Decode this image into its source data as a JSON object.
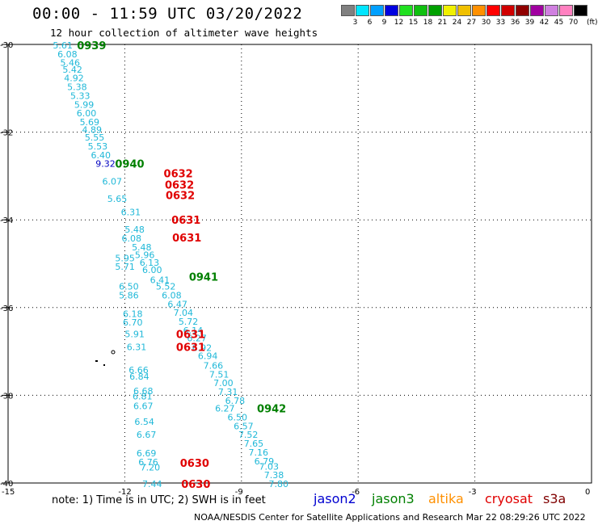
{
  "header": {
    "title": "00:00 - 11:59 UTC 03/20/2022",
    "subtitle": "12 hour collection of altimeter wave heights"
  },
  "legend": {
    "colors": [
      "#808080",
      "#00e5ff",
      "#00a0ff",
      "#0000e0",
      "#20e020",
      "#10c010",
      "#00a000",
      "#f0f000",
      "#f0c000",
      "#ff9000",
      "#ff0000",
      "#d00000",
      "#900000",
      "#a000a0",
      "#d080e0",
      "#ff80c0",
      "#000000"
    ],
    "labels": [
      "3",
      "6",
      "9",
      "12",
      "15",
      "18",
      "21",
      "24",
      "27",
      "30",
      "33",
      "36",
      "39",
      "42",
      "45",
      "70"
    ],
    "unit": "(ft)"
  },
  "axes": {
    "lat_labels": [
      "-30",
      "-32",
      "-34",
      "-36",
      "-38",
      "-40"
    ],
    "lon_labels": [
      "-15",
      "-12",
      "-9",
      "-6",
      "-3",
      "0"
    ]
  },
  "footer": {
    "note": "note: 1) Time is in UTC; 2) SWH is in feet",
    "satellites": [
      {
        "name": "jason2",
        "color": "#0000d0"
      },
      {
        "name": "jason3",
        "color": "#008000"
      },
      {
        "name": "altika",
        "color": "#ff9000"
      },
      {
        "name": "cryosat",
        "color": "#e00000"
      },
      {
        "name": "s3a",
        "color": "#800000"
      }
    ],
    "credit": "NOAA/NESDIS Center for Satellite Applications and Research    Mar 22 08:29:26 UTC 2022"
  },
  "wave_readings": [
    {
      "v": "5.61",
      "lon": -13.85,
      "lat": -30.0
    },
    {
      "v": "6.08",
      "lon": -13.73,
      "lat": -30.2
    },
    {
      "v": "5.46",
      "lon": -13.66,
      "lat": -30.4
    },
    {
      "v": "5.42",
      "lon": -13.6,
      "lat": -30.55
    },
    {
      "v": "4.92",
      "lon": -13.56,
      "lat": -30.75
    },
    {
      "v": "5.38",
      "lon": -13.48,
      "lat": -30.95
    },
    {
      "v": "5.33",
      "lon": -13.4,
      "lat": -31.15
    },
    {
      "v": "5.99",
      "lon": -13.3,
      "lat": -31.35
    },
    {
      "v": "6.00",
      "lon": -13.24,
      "lat": -31.55
    },
    {
      "v": "5.69",
      "lon": -13.16,
      "lat": -31.75
    },
    {
      "v": "4.89",
      "lon": -13.1,
      "lat": -31.92
    },
    {
      "v": "5.55",
      "lon": -13.03,
      "lat": -32.1
    },
    {
      "v": "5.53",
      "lon": -12.95,
      "lat": -32.3
    },
    {
      "v": "6.40",
      "lon": -12.87,
      "lat": -32.5
    },
    {
      "v": "9.32",
      "lon": -12.75,
      "lat": -32.7
    },
    {
      "v": "6.07",
      "lon": -12.58,
      "lat": -33.1
    },
    {
      "v": "5.65",
      "lon": -12.45,
      "lat": -33.5
    },
    {
      "v": "6.31",
      "lon": -12.1,
      "lat": -33.8
    },
    {
      "v": "5.48",
      "lon": -12.0,
      "lat": -34.2
    },
    {
      "v": "6.08",
      "lon": -12.08,
      "lat": -34.4
    },
    {
      "v": "5.48",
      "lon": -11.82,
      "lat": -34.6
    },
    {
      "v": "5.95",
      "lon": -12.25,
      "lat": -34.85
    },
    {
      "v": "5.96",
      "lon": -11.74,
      "lat": -34.78
    },
    {
      "v": "6.13",
      "lon": -11.62,
      "lat": -34.95
    },
    {
      "v": "5.71",
      "lon": -12.25,
      "lat": -35.05
    },
    {
      "v": "6.00",
      "lon": -11.55,
      "lat": -35.12
    },
    {
      "v": "6.41",
      "lon": -11.35,
      "lat": -35.35
    },
    {
      "v": "5.52",
      "lon": -11.2,
      "lat": -35.5
    },
    {
      "v": "6.50",
      "lon": -12.15,
      "lat": -35.5
    },
    {
      "v": "5.86",
      "lon": -12.15,
      "lat": -35.7
    },
    {
      "v": "6.08",
      "lon": -11.05,
      "lat": -35.7
    },
    {
      "v": "6.47",
      "lon": -10.9,
      "lat": -35.9
    },
    {
      "v": "7.04",
      "lon": -10.75,
      "lat": -36.1
    },
    {
      "v": "6.18",
      "lon": -12.05,
      "lat": -36.12
    },
    {
      "v": "6.70",
      "lon": -12.05,
      "lat": -36.32
    },
    {
      "v": "5.72",
      "lon": -10.62,
      "lat": -36.3
    },
    {
      "v": "5.91",
      "lon": -12.0,
      "lat": -36.58
    },
    {
      "v": "6.14",
      "lon": -10.5,
      "lat": -36.5
    },
    {
      "v": "6.27",
      "lon": -10.4,
      "lat": -36.68
    },
    {
      "v": "6.31",
      "lon": -11.95,
      "lat": -36.88
    },
    {
      "v": "6.92",
      "lon": -10.27,
      "lat": -36.9
    },
    {
      "v": "6.94",
      "lon": -10.12,
      "lat": -37.08
    },
    {
      "v": "7.66",
      "lon": -9.98,
      "lat": -37.3
    },
    {
      "v": "6.66",
      "lon": -11.9,
      "lat": -37.4
    },
    {
      "v": "6.84",
      "lon": -11.88,
      "lat": -37.55
    },
    {
      "v": "7.51",
      "lon": -9.83,
      "lat": -37.5
    },
    {
      "v": "7.00",
      "lon": -9.72,
      "lat": -37.7
    },
    {
      "v": "6.68",
      "lon": -11.78,
      "lat": -37.88
    },
    {
      "v": "6.81",
      "lon": -11.8,
      "lat": -38.0
    },
    {
      "v": "7.31",
      "lon": -9.6,
      "lat": -37.9
    },
    {
      "v": "6.78",
      "lon": -9.42,
      "lat": -38.1
    },
    {
      "v": "6.67",
      "lon": -11.78,
      "lat": -38.22
    },
    {
      "v": "6.27",
      "lon": -9.68,
      "lat": -38.28
    },
    {
      "v": "6.50",
      "lon": -9.36,
      "lat": -38.48
    },
    {
      "v": "6.57",
      "lon": -9.2,
      "lat": -38.68
    },
    {
      "v": "6.54",
      "lon": -11.75,
      "lat": -38.58
    },
    {
      "v": "7.52",
      "lon": -9.08,
      "lat": -38.88
    },
    {
      "v": "6.67",
      "lon": -11.7,
      "lat": -38.88
    },
    {
      "v": "7.65",
      "lon": -8.94,
      "lat": -39.08
    },
    {
      "v": "7.16",
      "lon": -8.82,
      "lat": -39.28
    },
    {
      "v": "6.69",
      "lon": -11.7,
      "lat": -39.3
    },
    {
      "v": "6.79",
      "lon": -8.67,
      "lat": -39.48
    },
    {
      "v": "6.76",
      "lon": -11.65,
      "lat": -39.5
    },
    {
      "v": "7.20",
      "lon": -11.6,
      "lat": -39.62
    },
    {
      "v": "7.03",
      "lon": -8.55,
      "lat": -39.6
    },
    {
      "v": "7.38",
      "lon": -8.42,
      "lat": -39.8
    },
    {
      "v": "7.80",
      "lon": -8.3,
      "lat": -40.0
    },
    {
      "v": "7.44",
      "lon": -11.55,
      "lat": -40.0
    }
  ],
  "pass_times": [
    {
      "t": "0939",
      "lon": -13.23,
      "lat": -30.0,
      "color": "#008000"
    },
    {
      "t": "0940",
      "lon": -12.25,
      "lat": -32.7,
      "color": "#008000"
    },
    {
      "t": "0941",
      "lon": -10.35,
      "lat": -35.28,
      "color": "#008000"
    },
    {
      "t": "0942",
      "lon": -8.6,
      "lat": -38.28,
      "color": "#008000"
    },
    {
      "t": "0632",
      "lon": -11.0,
      "lat": -32.92,
      "color": "#e00000"
    },
    {
      "t": "0632",
      "lon": -10.97,
      "lat": -33.18,
      "color": "#e00000"
    },
    {
      "t": "0632",
      "lon": -10.95,
      "lat": -33.42,
      "color": "#e00000"
    },
    {
      "t": "0631",
      "lon": -10.8,
      "lat": -33.98,
      "color": "#e00000"
    },
    {
      "t": "0631",
      "lon": -10.78,
      "lat": -34.38,
      "color": "#e00000"
    },
    {
      "t": "0631",
      "lon": -10.68,
      "lat": -36.58,
      "color": "#e00000"
    },
    {
      "t": "0631",
      "lon": -10.68,
      "lat": -36.88,
      "color": "#e00000"
    },
    {
      "t": "0630",
      "lon": -10.58,
      "lat": -39.52,
      "color": "#e00000"
    },
    {
      "t": "0630",
      "lon": -10.55,
      "lat": -40.0,
      "color": "#e00000"
    }
  ]
}
